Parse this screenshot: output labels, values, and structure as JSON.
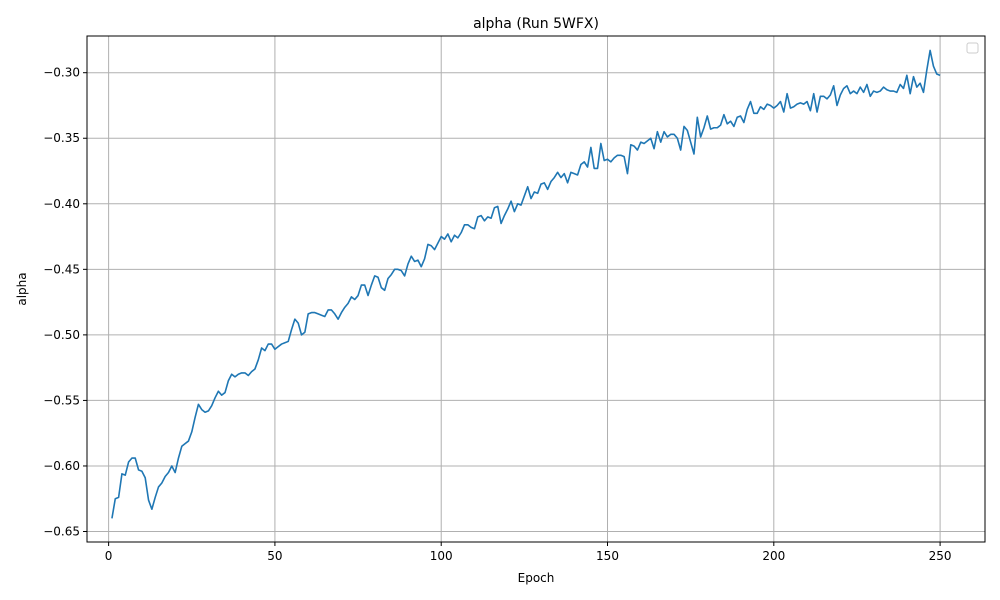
{
  "chart_data": {
    "type": "line",
    "title": "alpha (Run 5WFX)",
    "xlabel": "Epoch",
    "ylabel": "alpha",
    "xlim": [
      -6.5,
      263.5
    ],
    "ylim": [
      -0.658,
      -0.272
    ],
    "xticks": [
      0,
      50,
      100,
      150,
      200,
      250
    ],
    "yticks": [
      -0.65,
      -0.6,
      -0.55,
      -0.5,
      -0.45,
      -0.4,
      -0.35,
      -0.3
    ],
    "ytick_labels": [
      "−0.65",
      "−0.60",
      "−0.55",
      "−0.50",
      "−0.45",
      "−0.40",
      "−0.35",
      "−0.30"
    ],
    "xtick_labels": [
      "0",
      "50",
      "100",
      "150",
      "200",
      "250"
    ],
    "grid": true,
    "legend": "top-right (empty)",
    "series": [
      {
        "color": "#1f77b4",
        "x": [
          1,
          2,
          3,
          4,
          5,
          6,
          7,
          8,
          9,
          10,
          11,
          12,
          13,
          14,
          15,
          16,
          17,
          18,
          19,
          20,
          21,
          22,
          23,
          24,
          25,
          26,
          27,
          28,
          29,
          30,
          31,
          32,
          33,
          34,
          35,
          36,
          37,
          38,
          39,
          40,
          41,
          42,
          43,
          44,
          45,
          46,
          47,
          48,
          49,
          50,
          51,
          52,
          53,
          54,
          55,
          56,
          57,
          58,
          59,
          60,
          61,
          62,
          63,
          64,
          65,
          66,
          67,
          68,
          69,
          70,
          71,
          72,
          73,
          74,
          75,
          76,
          77,
          78,
          79,
          80,
          81,
          82,
          83,
          84,
          85,
          86,
          87,
          88,
          89,
          90,
          91,
          92,
          93,
          94,
          95,
          96,
          97,
          98,
          99,
          100,
          101,
          102,
          103,
          104,
          105,
          106,
          107,
          108,
          109,
          110,
          111,
          112,
          113,
          114,
          115,
          116,
          117,
          118,
          119,
          120,
          121,
          122,
          123,
          124,
          125,
          126,
          127,
          128,
          129,
          130,
          131,
          132,
          133,
          134,
          135,
          136,
          137,
          138,
          139,
          140,
          141,
          142,
          143,
          144,
          145,
          146,
          147,
          148,
          149,
          150,
          151,
          152,
          153,
          154,
          155,
          156,
          157,
          158,
          159,
          160,
          161,
          162,
          163,
          164,
          165,
          166,
          167,
          168,
          169,
          170,
          171,
          172,
          173,
          174,
          175,
          176,
          177,
          178,
          179,
          180,
          181,
          182,
          183,
          184,
          185,
          186,
          187,
          188,
          189,
          190,
          191,
          192,
          193,
          194,
          195,
          196,
          197,
          198,
          199,
          200,
          201,
          202,
          203,
          204,
          205,
          206,
          207,
          208,
          209,
          210,
          211,
          212,
          213,
          214,
          215,
          216,
          217,
          218,
          219,
          220,
          221,
          222,
          223,
          224,
          225,
          226,
          227,
          228,
          229,
          230,
          231,
          232,
          233,
          234,
          235,
          236,
          237,
          238,
          239,
          240,
          241,
          242,
          243,
          244,
          245,
          246,
          247,
          248,
          249,
          250
        ],
        "y": [
          -0.64,
          -0.625,
          -0.624,
          -0.606,
          -0.607,
          -0.597,
          -0.594,
          -0.594,
          -0.603,
          -0.604,
          -0.609,
          -0.626,
          -0.633,
          -0.624,
          -0.616,
          -0.613,
          -0.608,
          -0.605,
          -0.6,
          -0.605,
          -0.594,
          -0.585,
          -0.583,
          -0.581,
          -0.574,
          -0.563,
          -0.553,
          -0.557,
          -0.559,
          -0.558,
          -0.554,
          -0.548,
          -0.543,
          -0.546,
          -0.544,
          -0.535,
          -0.53,
          -0.532,
          -0.53,
          -0.529,
          -0.529,
          -0.531,
          -0.528,
          -0.526,
          -0.519,
          -0.51,
          -0.512,
          -0.507,
          -0.507,
          -0.511,
          -0.509,
          -0.507,
          -0.506,
          -0.505,
          -0.496,
          -0.488,
          -0.491,
          -0.5,
          -0.498,
          -0.484,
          -0.483,
          -0.483,
          -0.484,
          -0.485,
          -0.486,
          -0.481,
          -0.481,
          -0.484,
          -0.488,
          -0.483,
          -0.479,
          -0.476,
          -0.471,
          -0.473,
          -0.47,
          -0.462,
          -0.462,
          -0.47,
          -0.462,
          -0.455,
          -0.456,
          -0.464,
          -0.466,
          -0.457,
          -0.454,
          -0.45,
          -0.45,
          -0.451,
          -0.455,
          -0.446,
          -0.44,
          -0.444,
          -0.443,
          -0.448,
          -0.442,
          -0.431,
          -0.432,
          -0.435,
          -0.43,
          -0.425,
          -0.427,
          -0.423,
          -0.429,
          -0.424,
          -0.426,
          -0.422,
          -0.416,
          -0.416,
          -0.418,
          -0.419,
          -0.41,
          -0.409,
          -0.413,
          -0.41,
          -0.411,
          -0.403,
          -0.402,
          -0.415,
          -0.409,
          -0.404,
          -0.398,
          -0.406,
          -0.4,
          -0.401,
          -0.394,
          -0.387,
          -0.396,
          -0.391,
          -0.392,
          -0.385,
          -0.384,
          -0.389,
          -0.383,
          -0.38,
          -0.376,
          -0.38,
          -0.377,
          -0.384,
          -0.376,
          -0.377,
          -0.378,
          -0.37,
          -0.368,
          -0.372,
          -0.357,
          -0.373,
          -0.373,
          -0.354,
          -0.367,
          -0.366,
          -0.368,
          -0.365,
          -0.363,
          -0.363,
          -0.364,
          -0.377,
          -0.355,
          -0.356,
          -0.359,
          -0.353,
          -0.354,
          -0.352,
          -0.35,
          -0.358,
          -0.345,
          -0.353,
          -0.345,
          -0.349,
          -0.347,
          -0.347,
          -0.35,
          -0.359,
          -0.341,
          -0.344,
          -0.353,
          -0.362,
          -0.334,
          -0.349,
          -0.342,
          -0.333,
          -0.343,
          -0.342,
          -0.342,
          -0.34,
          -0.332,
          -0.339,
          -0.337,
          -0.341,
          -0.334,
          -0.333,
          -0.338,
          -0.328,
          -0.322,
          -0.331,
          -0.331,
          -0.326,
          -0.328,
          -0.324,
          -0.325,
          -0.327,
          -0.325,
          -0.322,
          -0.33,
          -0.316,
          -0.327,
          -0.326,
          -0.324,
          -0.323,
          -0.324,
          -0.322,
          -0.329,
          -0.316,
          -0.33,
          -0.318,
          -0.318,
          -0.32,
          -0.317,
          -0.31,
          -0.325,
          -0.317,
          -0.312,
          -0.31,
          -0.316,
          -0.314,
          -0.316,
          -0.311,
          -0.315,
          -0.309,
          -0.318,
          -0.314,
          -0.315,
          -0.314,
          -0.311,
          -0.313,
          -0.314,
          -0.314,
          -0.315,
          -0.309,
          -0.312,
          -0.302,
          -0.316,
          -0.303,
          -0.311,
          -0.308,
          -0.315,
          -0.298,
          -0.283,
          -0.295,
          -0.301,
          -0.302
        ]
      }
    ]
  }
}
